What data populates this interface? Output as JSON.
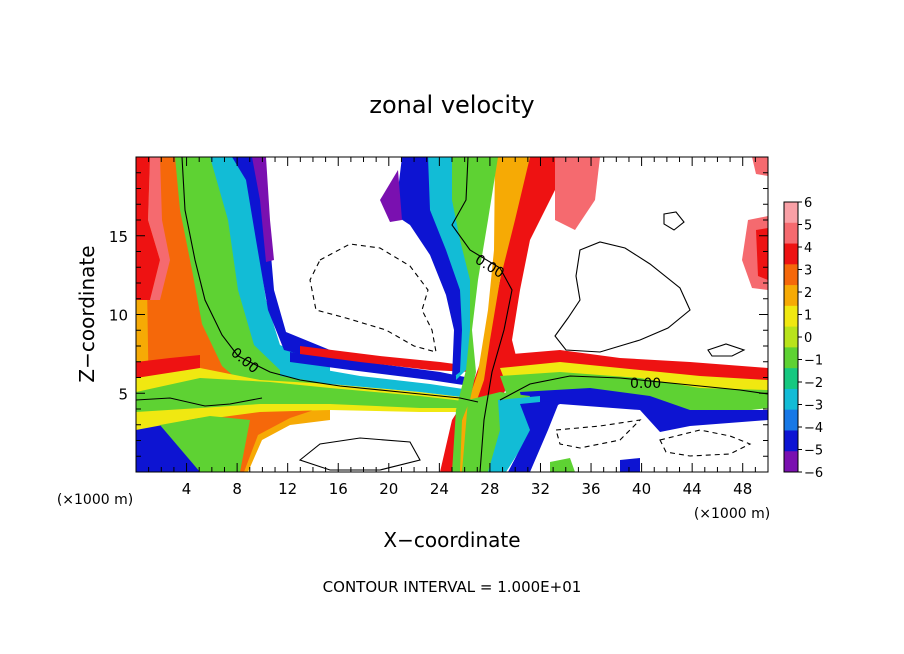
{
  "chart_data": {
    "type": "heatmap",
    "title": "zonal velocity",
    "xlabel": "X−coordinate",
    "ylabel": "Z−coordinate",
    "x_unit": "(×1000 m)",
    "y_unit": "(×1000 m)",
    "xlim": [
      0,
      50
    ],
    "ylim": [
      0,
      20
    ],
    "x_ticks": [
      "4",
      "8",
      "12",
      "16",
      "20",
      "24",
      "28",
      "32",
      "36",
      "40",
      "44",
      "48"
    ],
    "y_ticks": [
      "5",
      "10",
      "15"
    ],
    "colorbar": {
      "levels": [
        "6",
        "5",
        "4",
        "3",
        "2",
        "1",
        "0",
        "−1",
        "−2",
        "−3",
        "−4",
        "−5",
        "−6"
      ],
      "colors": [
        "#f9a0a6",
        "#f56a6f",
        "#ee1212",
        "#f5680a",
        "#f6aa05",
        "#f0e811",
        "#b8e31b",
        "#5ed233",
        "#16c880",
        "#12bcd6",
        "#1778e6",
        "#0d14d2",
        "#7a10b0"
      ]
    },
    "contour_labels": [
      "0.00",
      "0.00",
      "0.00"
    ],
    "note": "CONTOUR INTERVAL = 1.000E+01"
  }
}
